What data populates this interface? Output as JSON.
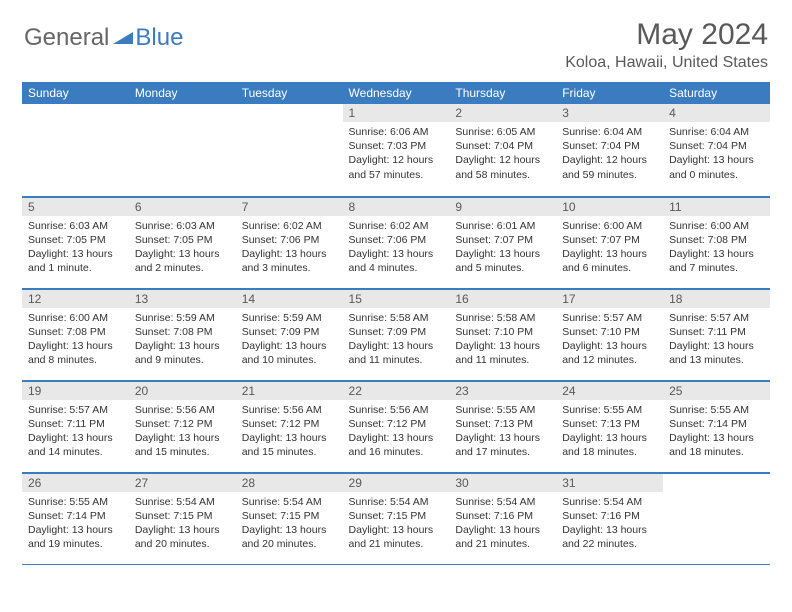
{
  "brand": {
    "part1": "General",
    "part2": "Blue"
  },
  "title": "May 2024",
  "location": "Koloa, Hawaii, United States",
  "colors": {
    "header_bg": "#3b7bbf",
    "header_text": "#ffffff",
    "daynum_bg": "#e8e8e8",
    "text_muted": "#595959",
    "text_body": "#333333",
    "rule": "#3b7bbf"
  },
  "weekdays": [
    "Sunday",
    "Monday",
    "Tuesday",
    "Wednesday",
    "Thursday",
    "Friday",
    "Saturday"
  ],
  "weeks": [
    [
      {
        "num": "",
        "sunrise": "",
        "sunset": "",
        "daylight": ""
      },
      {
        "num": "",
        "sunrise": "",
        "sunset": "",
        "daylight": ""
      },
      {
        "num": "",
        "sunrise": "",
        "sunset": "",
        "daylight": ""
      },
      {
        "num": "1",
        "sunrise": "Sunrise: 6:06 AM",
        "sunset": "Sunset: 7:03 PM",
        "daylight": "Daylight: 12 hours and 57 minutes."
      },
      {
        "num": "2",
        "sunrise": "Sunrise: 6:05 AM",
        "sunset": "Sunset: 7:04 PM",
        "daylight": "Daylight: 12 hours and 58 minutes."
      },
      {
        "num": "3",
        "sunrise": "Sunrise: 6:04 AM",
        "sunset": "Sunset: 7:04 PM",
        "daylight": "Daylight: 12 hours and 59 minutes."
      },
      {
        "num": "4",
        "sunrise": "Sunrise: 6:04 AM",
        "sunset": "Sunset: 7:04 PM",
        "daylight": "Daylight: 13 hours and 0 minutes."
      }
    ],
    [
      {
        "num": "5",
        "sunrise": "Sunrise: 6:03 AM",
        "sunset": "Sunset: 7:05 PM",
        "daylight": "Daylight: 13 hours and 1 minute."
      },
      {
        "num": "6",
        "sunrise": "Sunrise: 6:03 AM",
        "sunset": "Sunset: 7:05 PM",
        "daylight": "Daylight: 13 hours and 2 minutes."
      },
      {
        "num": "7",
        "sunrise": "Sunrise: 6:02 AM",
        "sunset": "Sunset: 7:06 PM",
        "daylight": "Daylight: 13 hours and 3 minutes."
      },
      {
        "num": "8",
        "sunrise": "Sunrise: 6:02 AM",
        "sunset": "Sunset: 7:06 PM",
        "daylight": "Daylight: 13 hours and 4 minutes."
      },
      {
        "num": "9",
        "sunrise": "Sunrise: 6:01 AM",
        "sunset": "Sunset: 7:07 PM",
        "daylight": "Daylight: 13 hours and 5 minutes."
      },
      {
        "num": "10",
        "sunrise": "Sunrise: 6:00 AM",
        "sunset": "Sunset: 7:07 PM",
        "daylight": "Daylight: 13 hours and 6 minutes."
      },
      {
        "num": "11",
        "sunrise": "Sunrise: 6:00 AM",
        "sunset": "Sunset: 7:08 PM",
        "daylight": "Daylight: 13 hours and 7 minutes."
      }
    ],
    [
      {
        "num": "12",
        "sunrise": "Sunrise: 6:00 AM",
        "sunset": "Sunset: 7:08 PM",
        "daylight": "Daylight: 13 hours and 8 minutes."
      },
      {
        "num": "13",
        "sunrise": "Sunrise: 5:59 AM",
        "sunset": "Sunset: 7:08 PM",
        "daylight": "Daylight: 13 hours and 9 minutes."
      },
      {
        "num": "14",
        "sunrise": "Sunrise: 5:59 AM",
        "sunset": "Sunset: 7:09 PM",
        "daylight": "Daylight: 13 hours and 10 minutes."
      },
      {
        "num": "15",
        "sunrise": "Sunrise: 5:58 AM",
        "sunset": "Sunset: 7:09 PM",
        "daylight": "Daylight: 13 hours and 11 minutes."
      },
      {
        "num": "16",
        "sunrise": "Sunrise: 5:58 AM",
        "sunset": "Sunset: 7:10 PM",
        "daylight": "Daylight: 13 hours and 11 minutes."
      },
      {
        "num": "17",
        "sunrise": "Sunrise: 5:57 AM",
        "sunset": "Sunset: 7:10 PM",
        "daylight": "Daylight: 13 hours and 12 minutes."
      },
      {
        "num": "18",
        "sunrise": "Sunrise: 5:57 AM",
        "sunset": "Sunset: 7:11 PM",
        "daylight": "Daylight: 13 hours and 13 minutes."
      }
    ],
    [
      {
        "num": "19",
        "sunrise": "Sunrise: 5:57 AM",
        "sunset": "Sunset: 7:11 PM",
        "daylight": "Daylight: 13 hours and 14 minutes."
      },
      {
        "num": "20",
        "sunrise": "Sunrise: 5:56 AM",
        "sunset": "Sunset: 7:12 PM",
        "daylight": "Daylight: 13 hours and 15 minutes."
      },
      {
        "num": "21",
        "sunrise": "Sunrise: 5:56 AM",
        "sunset": "Sunset: 7:12 PM",
        "daylight": "Daylight: 13 hours and 15 minutes."
      },
      {
        "num": "22",
        "sunrise": "Sunrise: 5:56 AM",
        "sunset": "Sunset: 7:12 PM",
        "daylight": "Daylight: 13 hours and 16 minutes."
      },
      {
        "num": "23",
        "sunrise": "Sunrise: 5:55 AM",
        "sunset": "Sunset: 7:13 PM",
        "daylight": "Daylight: 13 hours and 17 minutes."
      },
      {
        "num": "24",
        "sunrise": "Sunrise: 5:55 AM",
        "sunset": "Sunset: 7:13 PM",
        "daylight": "Daylight: 13 hours and 18 minutes."
      },
      {
        "num": "25",
        "sunrise": "Sunrise: 5:55 AM",
        "sunset": "Sunset: 7:14 PM",
        "daylight": "Daylight: 13 hours and 18 minutes."
      }
    ],
    [
      {
        "num": "26",
        "sunrise": "Sunrise: 5:55 AM",
        "sunset": "Sunset: 7:14 PM",
        "daylight": "Daylight: 13 hours and 19 minutes."
      },
      {
        "num": "27",
        "sunrise": "Sunrise: 5:54 AM",
        "sunset": "Sunset: 7:15 PM",
        "daylight": "Daylight: 13 hours and 20 minutes."
      },
      {
        "num": "28",
        "sunrise": "Sunrise: 5:54 AM",
        "sunset": "Sunset: 7:15 PM",
        "daylight": "Daylight: 13 hours and 20 minutes."
      },
      {
        "num": "29",
        "sunrise": "Sunrise: 5:54 AM",
        "sunset": "Sunset: 7:15 PM",
        "daylight": "Daylight: 13 hours and 21 minutes."
      },
      {
        "num": "30",
        "sunrise": "Sunrise: 5:54 AM",
        "sunset": "Sunset: 7:16 PM",
        "daylight": "Daylight: 13 hours and 21 minutes."
      },
      {
        "num": "31",
        "sunrise": "Sunrise: 5:54 AM",
        "sunset": "Sunset: 7:16 PM",
        "daylight": "Daylight: 13 hours and 22 minutes."
      },
      {
        "num": "",
        "sunrise": "",
        "sunset": "",
        "daylight": ""
      }
    ]
  ]
}
